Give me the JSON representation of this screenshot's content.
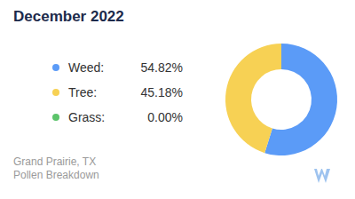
{
  "chart_data": {
    "type": "pie",
    "title": "December 2022",
    "categories": [
      "Weed:",
      "Tree:",
      "Grass:"
    ],
    "values": [
      54.82,
      45.18,
      0
    ],
    "value_labels": [
      "54.82%",
      "45.18%",
      "0.00%"
    ],
    "colors": [
      "#5b9bf7",
      "#f7d154",
      "#5cc46b"
    ],
    "annotations": [
      "Grand Prairie, TX",
      "Pollen Breakdown"
    ]
  }
}
